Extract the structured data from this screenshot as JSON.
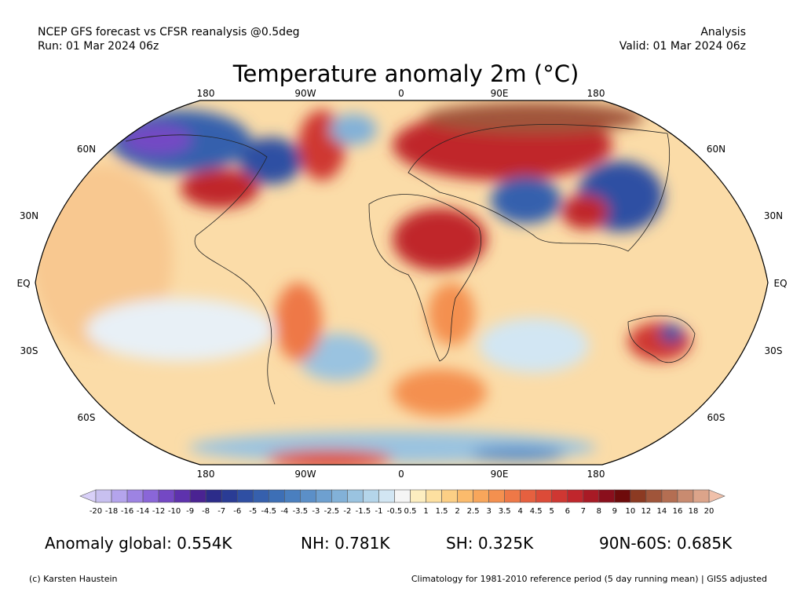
{
  "header": {
    "source": "NCEP GFS forecast vs CFSR reanalysis @0.5deg",
    "run": "Run: 01 Mar 2024 06z",
    "kind": "Analysis",
    "valid": "Valid: 01 Mar 2024 06z"
  },
  "title": "Temperature anomaly 2m (°C)",
  "lon_labels": [
    "180",
    "90W",
    "0",
    "90E",
    "180"
  ],
  "lat_labels": [
    "60N",
    "30N",
    "EQ",
    "30S",
    "60S"
  ],
  "colorbar": {
    "labels": [
      "-20",
      "-18",
      "-16",
      "-14",
      "-12",
      "-10",
      "-9",
      "-8",
      "-7",
      "-6",
      "-5",
      "-4.5",
      "-4",
      "-3.5",
      "-3",
      "-2.5",
      "-2",
      "-1.5",
      "-1",
      "-0.5",
      "0.5",
      "1",
      "1.5",
      "2",
      "2.5",
      "3",
      "3.5",
      "4",
      "4.5",
      "5",
      "6",
      "7",
      "8",
      "9",
      "10",
      "12",
      "14",
      "16",
      "18",
      "20"
    ],
    "colors": [
      "#c8c0f0",
      "#b4a4ec",
      "#9d83e3",
      "#8a66d8",
      "#7448c4",
      "#5e32ad",
      "#4a2392",
      "#2c2c8a",
      "#2a3c95",
      "#2f4fa3",
      "#3660ad",
      "#3d6fb6",
      "#4a7fbf",
      "#5b8fc8",
      "#6ea0d0",
      "#82b1d8",
      "#9ac3e0",
      "#b4d5ea",
      "#d2e6f3",
      "#f5f5f5",
      "#fdeec0",
      "#fde0a0",
      "#fccf85",
      "#fbbb6c",
      "#f8a65b",
      "#f4904f",
      "#ee7847",
      "#e6603f",
      "#dc4b38",
      "#cf3732",
      "#c0262c",
      "#a81a25",
      "#8a0f1c",
      "#6e0b0b",
      "#8c3a22",
      "#a0553a",
      "#b46e52",
      "#c98b70",
      "#dca48a"
    ],
    "under_color": "#d8d0f8",
    "over_color": "#f0c0aa"
  },
  "stats": [
    "Anomaly global: 0.554K",
    "NH: 0.781K",
    "SH: 0.325K",
    "90N-60S: 0.685K"
  ],
  "footer": {
    "credit": "(c) Karsten Haustein",
    "note": "Climatology for 1981-2010 reference period (5 day running mean) | GISS adjusted"
  }
}
